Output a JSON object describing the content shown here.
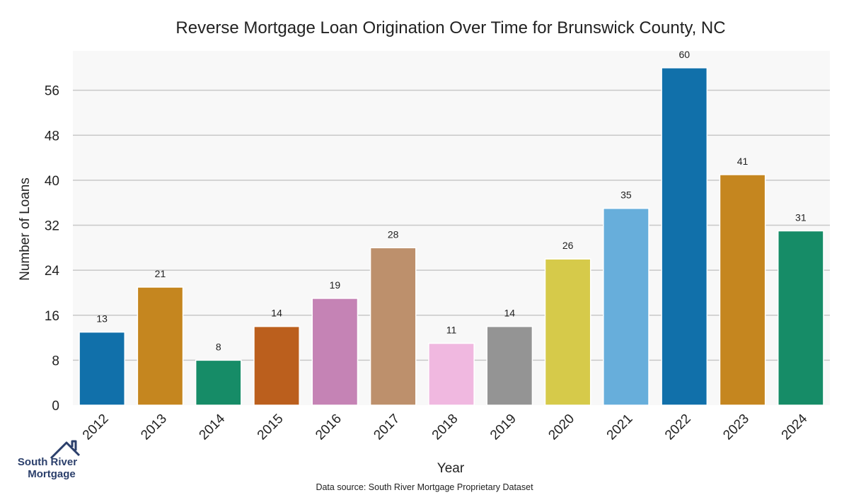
{
  "source_note": "Data source: South River Mortgage Proprietary Dataset",
  "logo": {
    "line1": "South River",
    "line2": "Mortgage",
    "icon": "house-roof-icon",
    "color": "#2b3f6b"
  },
  "chart_data": {
    "type": "bar",
    "title": "Reverse Mortgage Loan Origination Over Time for Brunswick County, NC",
    "xlabel": "Year",
    "ylabel": "Number of Loans",
    "categories": [
      "2012",
      "2013",
      "2014",
      "2015",
      "2016",
      "2017",
      "2018",
      "2019",
      "2020",
      "2021",
      "2022",
      "2023",
      "2024"
    ],
    "values": [
      13,
      21,
      8,
      14,
      19,
      28,
      11,
      14,
      26,
      35,
      60,
      41,
      31
    ],
    "colors": [
      "#1170aa",
      "#c5861f",
      "#168c67",
      "#bb5f1d",
      "#c583b5",
      "#bd906c",
      "#f0b8e0",
      "#949494",
      "#d6ca4a",
      "#67aedb",
      "#1170aa",
      "#c5861f",
      "#168c67"
    ],
    "yticks": [
      0,
      8,
      16,
      24,
      32,
      40,
      48,
      56
    ],
    "ylim": [
      0,
      63
    ],
    "grid": true,
    "plot_background": "#f8f8f8",
    "grid_color": "#c8c8c8"
  }
}
